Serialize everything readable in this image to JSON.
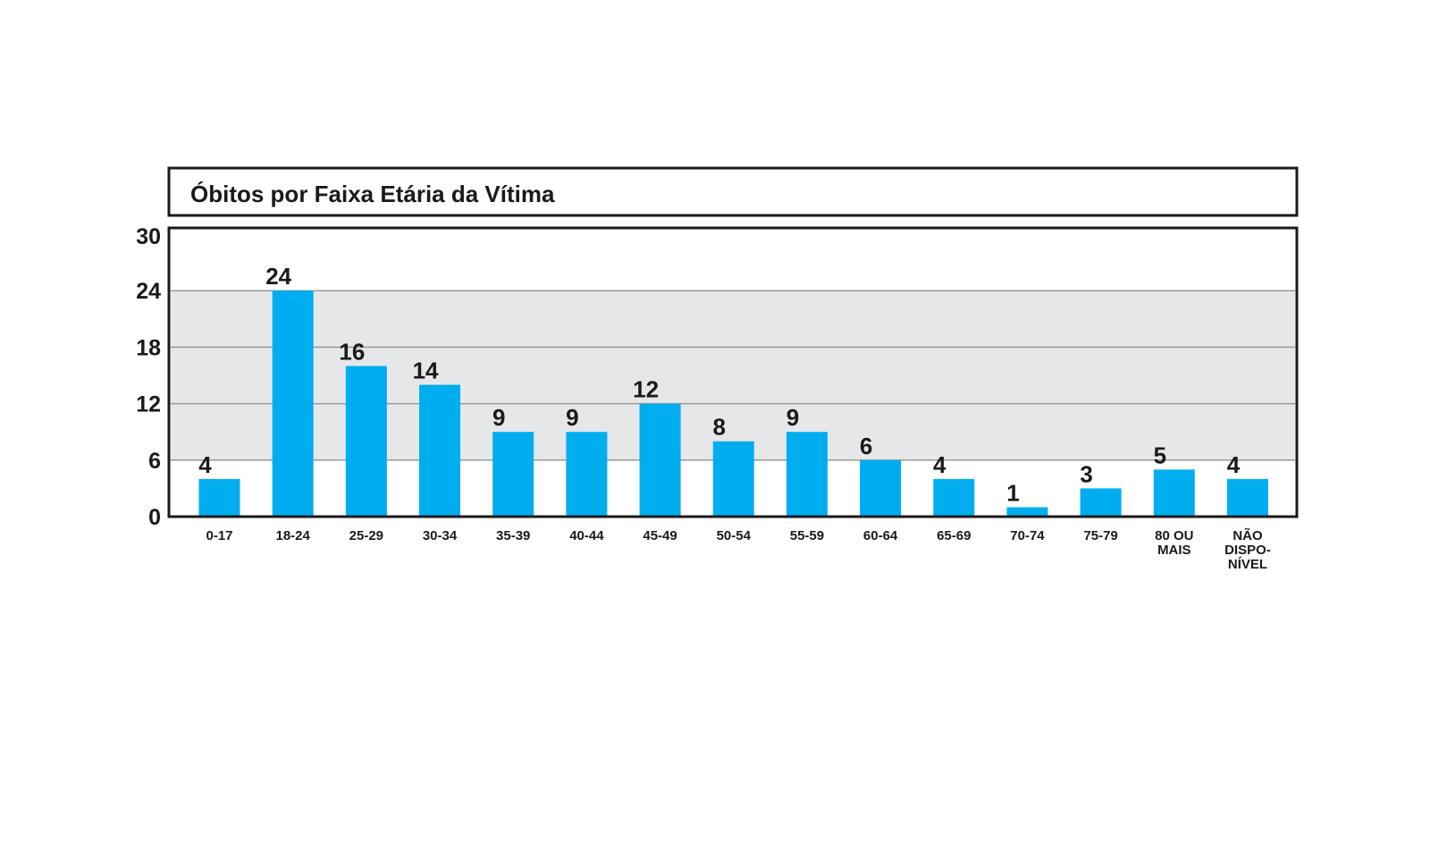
{
  "chart_data": {
    "type": "bar",
    "title": "Óbitos por Faixa Etária da Vítima",
    "xlabel": "",
    "ylabel": "",
    "ylim": [
      0,
      30
    ],
    "yticks": [
      0,
      6,
      12,
      18,
      24,
      30
    ],
    "grid": true,
    "legend": "none",
    "categories": [
      [
        "0-17"
      ],
      [
        "18-24"
      ],
      [
        "25-29"
      ],
      [
        "30-34"
      ],
      [
        "35-39"
      ],
      [
        "40-44"
      ],
      [
        "45-49"
      ],
      [
        "50-54"
      ],
      [
        "55-59"
      ],
      [
        "60-64"
      ],
      [
        "65-69"
      ],
      [
        "70-74"
      ],
      [
        "75-79"
      ],
      [
        "80 OU",
        "MAIS"
      ],
      [
        "NÃO",
        "DISPO-",
        "NÍVEL"
      ]
    ],
    "values": [
      4,
      24,
      16,
      14,
      9,
      9,
      12,
      8,
      9,
      6,
      4,
      1,
      3,
      5,
      4
    ],
    "colors": {
      "bar": "#00aeef",
      "band": "#e6e7e9",
      "frame": "#1a1a1a",
      "grid": "#9a9a9a"
    }
  }
}
